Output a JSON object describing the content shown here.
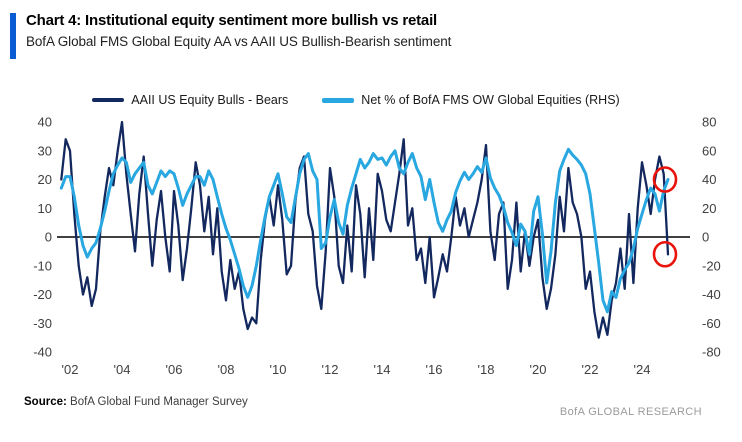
{
  "header": {
    "title": "Chart 4: Institutional equity sentiment more bullish vs retail",
    "subtitle": "BofA Global FMS Global Equity AA vs AAII US Bullish-Bearish sentiment"
  },
  "legend": {
    "items": [
      {
        "label": "AAII US Equity Bulls - Bears",
        "color": "#13285e"
      },
      {
        "label": "Net % of BofA FMS OW Global Equities (RHS)",
        "color": "#28a7e0"
      }
    ]
  },
  "footer": {
    "source_label": "Source:",
    "source_text": "BofA Global Fund Manager Survey",
    "brand": "BofA GLOBAL RESEARCH"
  },
  "colors": {
    "accent": "#0b5bd3",
    "navy": "#13285e",
    "light_blue": "#28a7e0",
    "highlight_red": "#e9130c",
    "axis_text": "#404040",
    "zero_line": "#000000"
  },
  "chart_data": {
    "type": "line",
    "title": "Chart 4: Institutional equity sentiment more bullish vs retail",
    "subtitle": "BofA Global FMS Global Equity AA vs AAII US Bullish-Bearish sentiment",
    "grid": false,
    "legend_position": "top",
    "x_axis": {
      "tick_labels": [
        "'02",
        "'04",
        "'06",
        "'08",
        "'10",
        "'12",
        "'14",
        "'16",
        "'18",
        "'20",
        "'22",
        "'24"
      ],
      "tick_years": [
        2002,
        2004,
        2006,
        2008,
        2010,
        2012,
        2014,
        2016,
        2018,
        2020,
        2022,
        2024
      ],
      "range_years": [
        2001.6,
        2025.3
      ]
    },
    "y_axis_left": {
      "ticks": [
        40,
        30,
        20,
        10,
        0,
        -10,
        -20,
        -30,
        -40
      ],
      "ylim": [
        -40,
        40
      ]
    },
    "y_axis_right": {
      "ticks": [
        80,
        60,
        40,
        20,
        0,
        -20,
        -40,
        -60,
        -80
      ],
      "ylim": [
        -80,
        80
      ]
    },
    "series": [
      {
        "name": "AAII US Equity Bulls - Bears",
        "axis": "left",
        "color": "#13285e",
        "x_start": 2001.667,
        "x_step": 0.16667,
        "values": [
          20,
          34,
          30,
          8,
          -10,
          -20,
          -14,
          -24,
          -18,
          2,
          14,
          24,
          18,
          30,
          40,
          22,
          8,
          -5,
          15,
          28,
          8,
          -10,
          6,
          16,
          0,
          -12,
          16,
          4,
          -15,
          -4,
          10,
          26,
          18,
          2,
          14,
          -6,
          10,
          -12,
          -22,
          -8,
          -18,
          -12,
          -25,
          -32,
          -28,
          -30,
          -8,
          6,
          14,
          4,
          18,
          6,
          -13,
          -10,
          12,
          24,
          28,
          8,
          2,
          -17,
          -25,
          -5,
          24,
          14,
          -10,
          -16,
          4,
          -12,
          18,
          8,
          -14,
          10,
          -8,
          22,
          16,
          6,
          2,
          12,
          22,
          34,
          4,
          10,
          -8,
          -4,
          -16,
          0,
          -21,
          -14,
          -6,
          -12,
          0,
          14,
          4,
          10,
          0,
          6,
          12,
          20,
          32,
          2,
          -8,
          8,
          12,
          -18,
          -8,
          12,
          -12,
          2,
          -10,
          0,
          6,
          -14,
          -25,
          -18,
          -6,
          14,
          2,
          24,
          12,
          8,
          0,
          -18,
          -12,
          -26,
          -35,
          -28,
          -34,
          -22,
          -16,
          -4,
          -18,
          8,
          -16,
          10,
          26,
          18,
          8,
          20,
          28,
          22,
          -6
        ]
      },
      {
        "name": "Net % of BofA FMS OW Global Equities (RHS)",
        "axis": "right",
        "color": "#28a7e0",
        "x_start": 2001.667,
        "x_step": 0.16667,
        "values": [
          34,
          42,
          42,
          28,
          8,
          -6,
          -14,
          -8,
          -4,
          6,
          18,
          32,
          44,
          50,
          55,
          52,
          38,
          44,
          48,
          52,
          36,
          30,
          38,
          46,
          42,
          46,
          44,
          34,
          22,
          30,
          36,
          42,
          42,
          36,
          46,
          40,
          28,
          16,
          6,
          -2,
          -12,
          -22,
          -34,
          -42,
          -34,
          -20,
          -2,
          14,
          28,
          36,
          44,
          30,
          14,
          10,
          27,
          44,
          54,
          58,
          46,
          40,
          -8,
          -4,
          14,
          26,
          10,
          2,
          22,
          34,
          44,
          54,
          48,
          52,
          58,
          54,
          55,
          50,
          56,
          60,
          48,
          44,
          52,
          58,
          48,
          42,
          26,
          40,
          24,
          10,
          4,
          12,
          18,
          31,
          39,
          45,
          40,
          44,
          49,
          45,
          55,
          41,
          34,
          29,
          21,
          10,
          3,
          -6,
          9,
          4,
          -12,
          18,
          28,
          2,
          -32,
          -10,
          24,
          46,
          54,
          61,
          57,
          54,
          50,
          44,
          30,
          6,
          -18,
          -44,
          -52,
          -38,
          -42,
          -29,
          -23,
          -18,
          -8,
          6,
          16,
          26,
          34,
          30,
          18,
          32,
          40
        ]
      }
    ],
    "annotations": [
      {
        "type": "circle",
        "x": 2025.0,
        "value": 40,
        "axis": "right",
        "color": "#e9130c"
      },
      {
        "type": "circle",
        "x": 2025.0,
        "value": -6,
        "axis": "left",
        "color": "#e9130c"
      }
    ]
  }
}
